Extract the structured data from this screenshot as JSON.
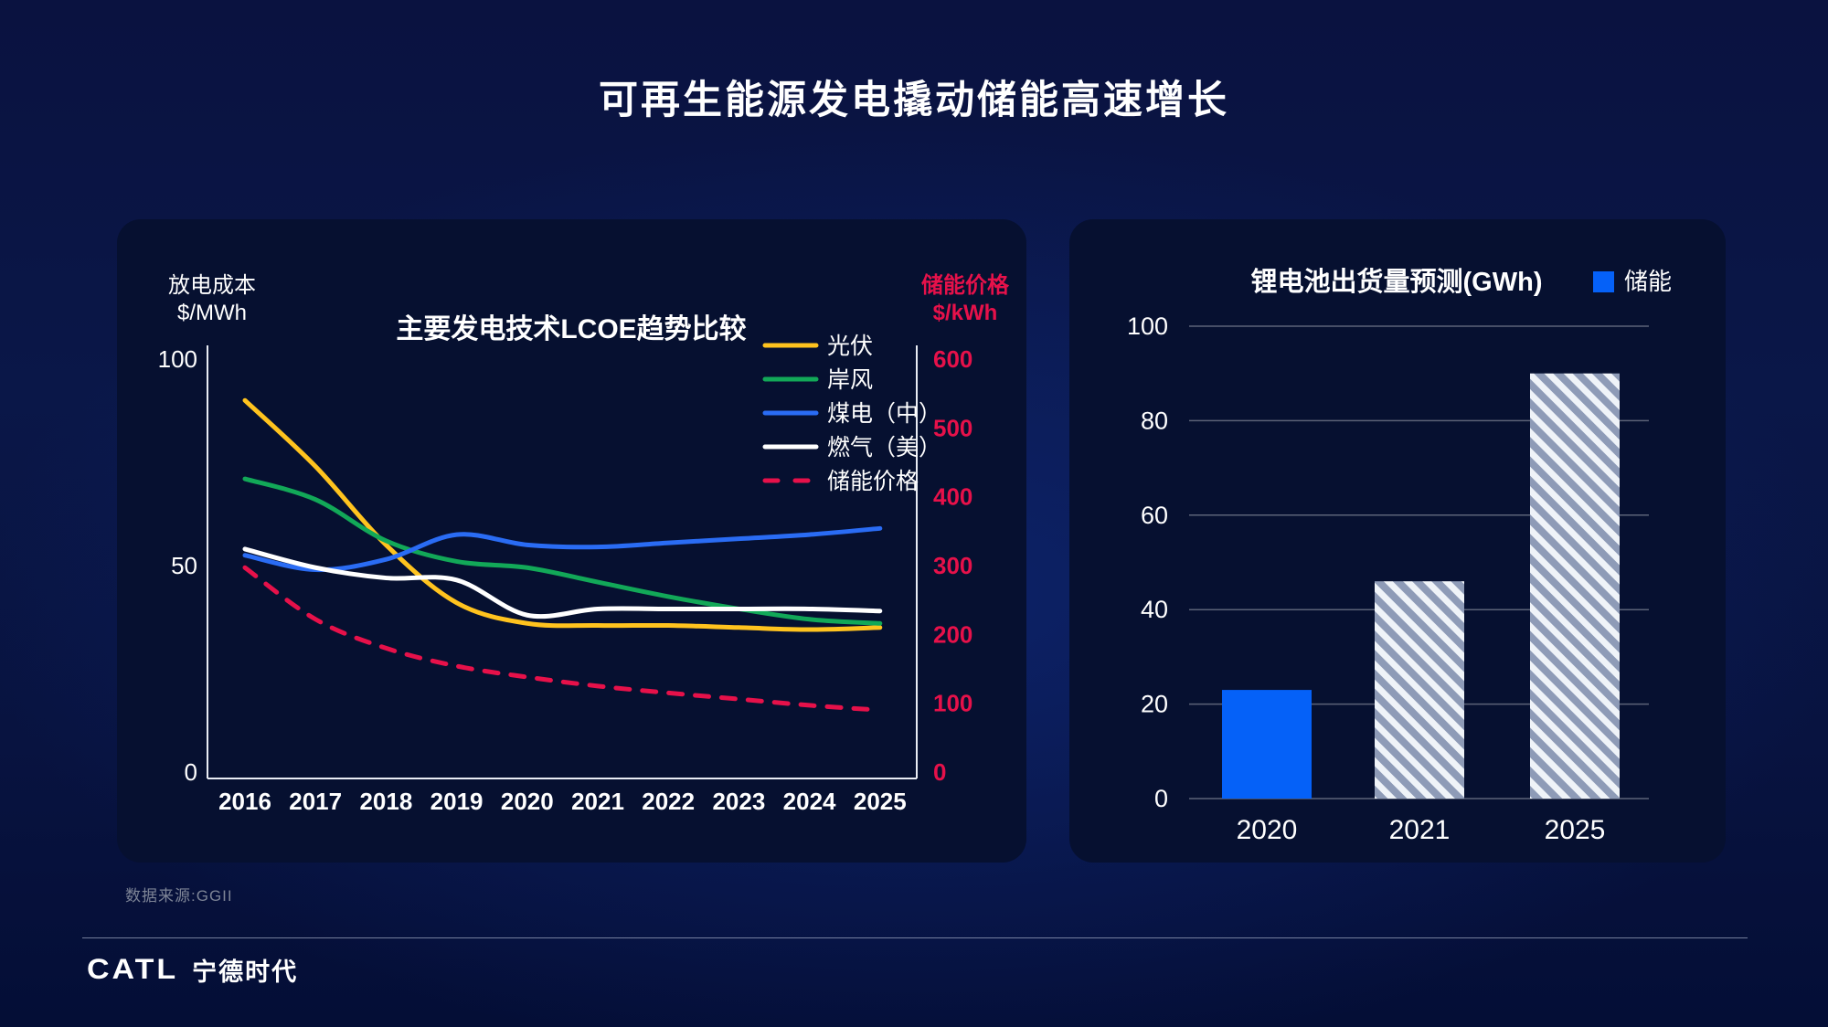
{
  "slide": {
    "title": "可再生能源发电撬动储能高速增长",
    "footnote": "数据来源:GGII",
    "logo_text": "CATL",
    "logo_cn": "宁德时代"
  },
  "colors": {
    "page_bg": "#0a1748",
    "card_bg": "#061030",
    "text_white": "#ffffff",
    "accent_red": "#e6114a",
    "pv_yellow": "#ffc31e",
    "wind_green": "#12a858",
    "coal_blue": "#2a6cf4",
    "gas_white": "#ffffff",
    "bar_blue": "#0561f8",
    "hatch_light": "#eff3f8",
    "hatch_dark": "#8e9bb7",
    "axis_line": "#e9ecf4",
    "grid_line": "rgba(255,255,255,0.35)",
    "footnote_gray": "#7d8496"
  },
  "chart_data": [
    {
      "type": "line",
      "title": "主要发电技术LCOE趋势比较",
      "x": [
        "2016",
        "2017",
        "2018",
        "2019",
        "2020",
        "2021",
        "2022",
        "2023",
        "2024",
        "2025"
      ],
      "left_axis": {
        "label": [
          "放电成本",
          "$/MWh"
        ],
        "ticks": [
          100,
          50,
          0
        ],
        "range": [
          0,
          105
        ],
        "unit": "$/MWh"
      },
      "right_axis": {
        "label": [
          "储能价格",
          "$/kWh"
        ],
        "ticks": [
          600,
          500,
          400,
          300,
          200,
          100,
          0
        ],
        "range": [
          0,
          630
        ],
        "unit": "$/kWh"
      },
      "legend_position": "top-right",
      "grid": false,
      "series": [
        {
          "key": "pv",
          "name": "光伏",
          "axis": "left",
          "dashed": false,
          "color_ref": "pv_yellow",
          "values": [
            90,
            74,
            55,
            41,
            36,
            35.5,
            35.5,
            35,
            34.5,
            35
          ]
        },
        {
          "key": "onshore-wind",
          "name": "岸风",
          "axis": "left",
          "dashed": false,
          "color_ref": "wind_green",
          "values": [
            71,
            66,
            56,
            51,
            49.5,
            46,
            42.5,
            39.5,
            37,
            36
          ]
        },
        {
          "key": "coal-china",
          "name": "煤电（中）",
          "axis": "left",
          "dashed": false,
          "color_ref": "coal_blue",
          "values": [
            52.5,
            49,
            51.5,
            57.5,
            55,
            54.5,
            55.5,
            56.5,
            57.5,
            59
          ]
        },
        {
          "key": "gas-us",
          "name": "燃气（美）",
          "axis": "left",
          "dashed": false,
          "color_ref": "gas_white",
          "values": [
            54,
            49.5,
            47,
            46.5,
            38,
            39.5,
            39.5,
            39.5,
            39.5,
            39
          ]
        },
        {
          "key": "storage-price",
          "name": "储能价格",
          "axis": "right",
          "dashed": true,
          "color_ref": "accent_red",
          "values": [
            297,
            222,
            180,
            154,
            138,
            125,
            115,
            106,
            97,
            90
          ]
        }
      ]
    },
    {
      "type": "bar",
      "title": "锂电池出货量预测(GWh)",
      "legend": [
        {
          "key": "storage",
          "name": "储能",
          "color_ref": "bar_blue"
        }
      ],
      "categories": [
        "2020",
        "2021",
        "2025"
      ],
      "values": [
        23,
        46,
        90
      ],
      "bar_styles": [
        "solid",
        "hatched",
        "hatched"
      ],
      "ylabel": "GWh",
      "ylim": [
        0,
        100
      ],
      "yticks": [
        100,
        80,
        60,
        40,
        20,
        0
      ],
      "grid": true,
      "legend_position": "top-right"
    }
  ]
}
